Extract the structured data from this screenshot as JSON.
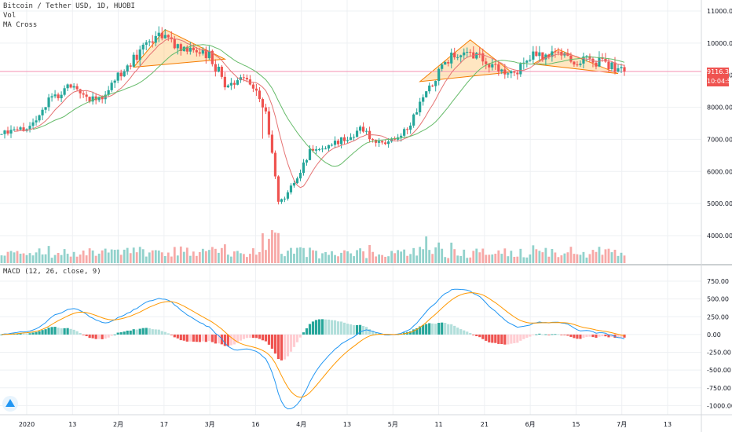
{
  "legend": {
    "symbol": "Bitcoin / Tether USD, 1D, HUOBI",
    "vol": "Vol",
    "ma": "MA Cross",
    "macd": "MACD (12, 26, close, 9)"
  },
  "price_tag": {
    "price": "9116.37",
    "countdown": "10:04:56"
  },
  "brand_icon": "tradingview-logo-icon",
  "colors": {
    "up": "#26a69a",
    "down": "#ef5350",
    "ma_fast": "#e57373",
    "ma_slow": "#66bb6a",
    "macd": "#2196f3",
    "signal": "#ff9800",
    "pattern": "#ffb74d",
    "level": "#f48fb1",
    "price_tag": "#ef5350"
  },
  "chart_data": [
    {
      "type": "candlestick",
      "title": "Bitcoin / Tether USD, 1D, HUOBI",
      "y_axis": {
        "range": [
          3000,
          11000
        ],
        "ticks": [
          "11000.00",
          "10000.00",
          "9000.00",
          "8000.00",
          "7000.00",
          "6000.00",
          "5000.00",
          "4000.00"
        ]
      },
      "x_axis": {
        "ticks": [
          "2020",
          "13",
          "2月",
          "17",
          "3月",
          "16",
          "4月",
          "13",
          "5月",
          "11",
          "21",
          "6月",
          "15",
          "7月",
          "13"
        ]
      },
      "horizontal_level": 9116.37,
      "series": [
        {
          "name": "MA Cross",
          "kind": "moving-average-fast"
        },
        {
          "name": "MA Cross",
          "kind": "moving-average-slow"
        }
      ],
      "price_anchors": [
        [
          0,
          7200
        ],
        [
          8,
          7300
        ],
        [
          14,
          8100
        ],
        [
          22,
          8700
        ],
        [
          30,
          8150
        ],
        [
          40,
          9300
        ],
        [
          50,
          10300
        ],
        [
          58,
          9800
        ],
        [
          66,
          9600
        ],
        [
          72,
          8600
        ],
        [
          78,
          9000
        ],
        [
          84,
          7900
        ],
        [
          88,
          5000
        ],
        [
          91,
          5300
        ],
        [
          98,
          6600
        ],
        [
          104,
          6800
        ],
        [
          110,
          7100
        ],
        [
          114,
          7300
        ],
        [
          120,
          6850
        ],
        [
          128,
          7200
        ],
        [
          136,
          8600
        ],
        [
          142,
          9500
        ],
        [
          148,
          9800
        ],
        [
          155,
          9400
        ],
        [
          162,
          9000
        ],
        [
          170,
          9700
        ],
        [
          180,
          9500
        ],
        [
          190,
          9400
        ],
        [
          198,
          9116
        ]
      ],
      "patterns": [
        {
          "kind": "triangle",
          "points": [
            [
              42,
              9250
            ],
            [
              52,
              10420
            ],
            [
              71,
              9500
            ]
          ]
        },
        {
          "kind": "triangle",
          "points": [
            [
              133,
              8800
            ],
            [
              149,
              10100
            ],
            [
              162,
              9100
            ]
          ]
        },
        {
          "kind": "triangle",
          "points": [
            [
              169,
              9350
            ],
            [
              177,
              9800
            ],
            [
              196,
              9050
            ]
          ]
        }
      ]
    },
    {
      "type": "bar",
      "title": "Vol"
    },
    {
      "type": "histogram+line",
      "title": "MACD (12, 26, close, 9)",
      "y_axis": {
        "range": [
          -1150,
          850
        ],
        "ticks": [
          "750.00",
          "500.00",
          "250.00",
          "0.00",
          "-250.00",
          "-500.00",
          "-750.00",
          "-1000.00"
        ]
      },
      "series": [
        {
          "name": "MACD"
        },
        {
          "name": "Signal"
        },
        {
          "name": "Histogram"
        }
      ]
    }
  ]
}
